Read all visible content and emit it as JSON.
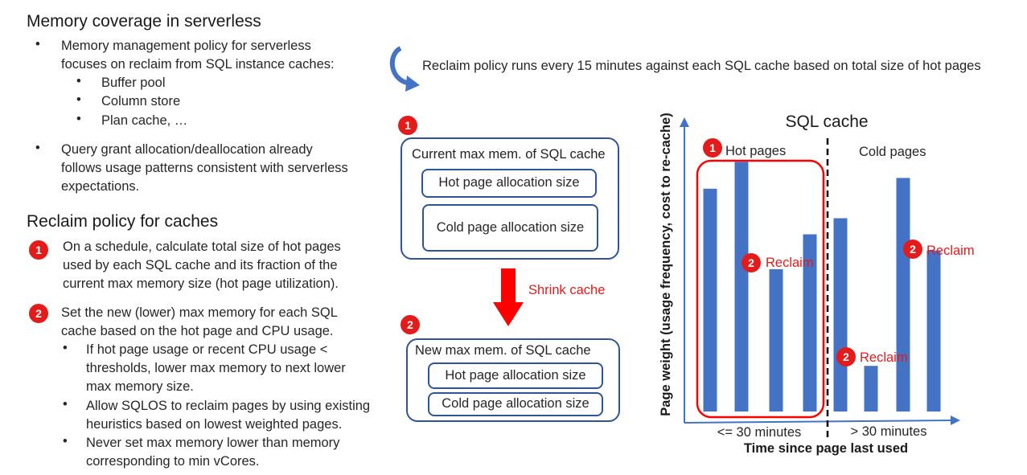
{
  "left": {
    "section1_title": "Memory coverage in serverless",
    "s1_b1_line1": "Memory management policy for serverless",
    "s1_b1_line2": "focuses on reclaim from SQL instance caches:",
    "sub_items": [
      "Buffer pool",
      "Column store",
      "Plan cache, …"
    ],
    "s1_b2_line1": "Query grant allocation/deallocation already",
    "s1_b2_line2": "follows usage patterns consistent with serverless",
    "s1_b2_line3": "expectations.",
    "section2_title": "Reclaim policy for caches",
    "step1_line1": "On a schedule, calculate total size of hot pages",
    "step1_line2": "used by each SQL cache and its fraction of the",
    "step1_line3": "current max memory size (hot page utilization).",
    "step2_line1": "Set the new (lower) max memory for each SQL",
    "step2_line2": "cache based on the hot page and CPU usage.",
    "sb1_line1": "If hot page usage or recent CPU usage <",
    "sb1_line2": "thresholds, lower max memory to next lower",
    "sb1_line3": "max memory size.",
    "sb2_line1": "Allow SQLOS to reclaim pages by using existing",
    "sb2_line2": "heuristics based on lowest weighted pages.",
    "sb3_line1": "Never set max memory lower than memory",
    "sb3_line2": "corresponding to min vCores.",
    "badge1": "1",
    "badge2": "2"
  },
  "middle": {
    "policy_text": "Reclaim policy runs every 15 minutes against each SQL cache based on total size of hot pages",
    "box1_title": "Current max mem. of SQL cache",
    "box1_hot": "Hot page allocation size",
    "box1_cold": "Cold page allocation size",
    "shrink_label": "Shrink cache",
    "box2_title": "New max mem. of SQL cache",
    "box2_hot": "Hot page allocation size",
    "box2_cold": "Cold page allocation size"
  },
  "chart": {
    "title": "SQL cache",
    "ylabel": "Page weight (usage frequency, cost to re-cache)",
    "xlabel": "Time since page last used",
    "hot_label": "Hot pages",
    "cold_label": "Cold pages",
    "left_tick": "<= 30 minutes",
    "right_tick": "> 30 minutes",
    "reclaim_label": "Reclaim",
    "bar_color": "#4472c4",
    "accent_red": "#e31b1b"
  },
  "chart_data": {
    "type": "bar",
    "title": "SQL cache",
    "xlabel": "Time since page last used",
    "ylabel": "Page weight (usage frequency, cost to re-cache)",
    "groups": [
      "Hot pages",
      "Cold pages"
    ],
    "series": [
      {
        "name": "Hot pages",
        "values": [
          0.83,
          0.93,
          0.53,
          0.66
        ]
      },
      {
        "name": "Cold pages",
        "values": [
          0.72,
          0.17,
          0.87,
          0.6
        ]
      }
    ],
    "ylim": [
      0,
      1
    ],
    "grid": false
  }
}
